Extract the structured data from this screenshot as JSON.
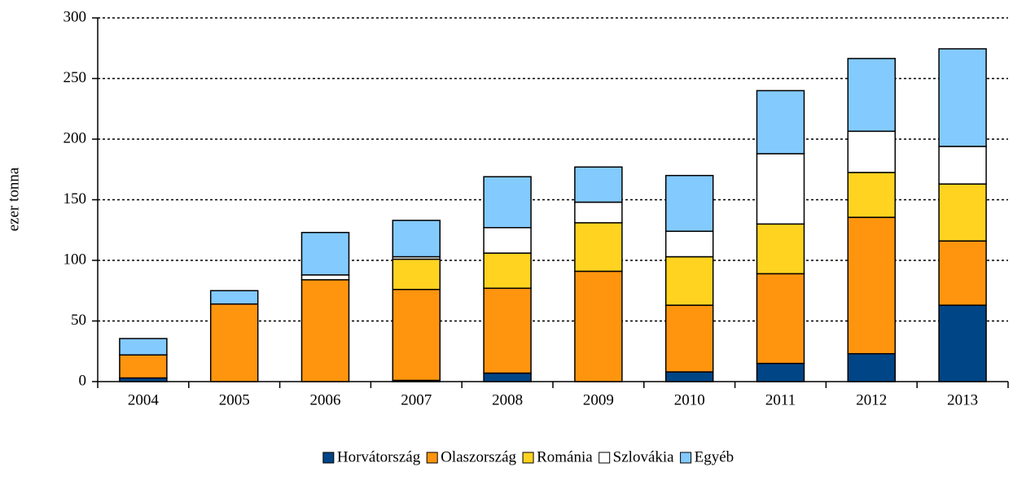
{
  "chart_data": {
    "type": "bar",
    "stacked": true,
    "y_label": "ezer tonna",
    "categories": [
      "2004",
      "2005",
      "2006",
      "2007",
      "2008",
      "2009",
      "2010",
      "2011",
      "2012",
      "2013"
    ],
    "series": [
      {
        "name": "Horvátország",
        "color": "#004586",
        "values": [
          3,
          0,
          0,
          1,
          7,
          0,
          8,
          15,
          23,
          63
        ]
      },
      {
        "name": "Olaszország",
        "color": "#ff950e",
        "values": [
          19,
          64,
          84,
          75,
          70,
          91,
          55,
          74,
          112.5,
          53
        ]
      },
      {
        "name": "Románia",
        "color": "#ffd320",
        "values": [
          0,
          0,
          0,
          25,
          29,
          40,
          40,
          41,
          37,
          47
        ]
      },
      {
        "name": "Szlovákia",
        "color": "#ffffff",
        "values": [
          0,
          0,
          4,
          2,
          21,
          17,
          21,
          58,
          34,
          31
        ]
      },
      {
        "name": "Egyéb",
        "color": "#83caff",
        "values": [
          13.5,
          11,
          35,
          30,
          42,
          29,
          46,
          52,
          60,
          80.5
        ]
      }
    ],
    "ylim": [
      0,
      300
    ],
    "yticks": [
      0,
      50,
      100,
      150,
      200,
      250,
      300
    ],
    "grid": true,
    "legend": "bottom"
  }
}
